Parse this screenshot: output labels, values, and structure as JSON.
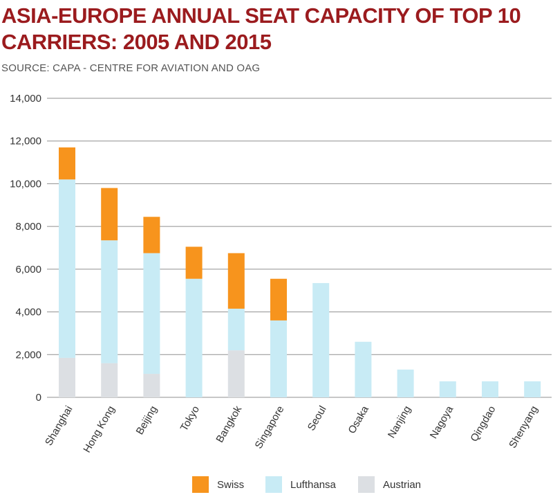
{
  "header": {
    "title": "ASIA-EUROPE ANNUAL SEAT CAPACITY OF TOP 10 CARRIERS: 2005 AND 2015",
    "source": "SOURCE: CAPA - CENTRE FOR AVIATION AND OAG"
  },
  "colors": {
    "swiss": "#f7941d",
    "lufthansa": "#c8ebf5",
    "austrian": "#dcdfe3",
    "grid": "#8f8f8f",
    "title": "#9b1b1e"
  },
  "chart_data": {
    "type": "bar",
    "stacked": true,
    "title": "ASIA-EUROPE ANNUAL SEAT CAPACITY OF TOP 10 CARRIERS: 2005 AND 2015",
    "xlabel": "",
    "ylabel": "",
    "ylim": [
      0,
      14000
    ],
    "yticks": [
      0,
      2000,
      4000,
      6000,
      8000,
      10000,
      12000,
      14000
    ],
    "ytick_labels": [
      "0",
      "2,000",
      "4,000",
      "6,000",
      "8,000",
      "10,000",
      "12,000",
      "14,000"
    ],
    "grid": true,
    "legend_position": "bottom",
    "categories": [
      "Shanghai",
      "Hong Kong",
      "Beijing",
      "Tokyo",
      "Bangkok",
      "Singapore",
      "Seoul",
      "Osaka",
      "Nanjing",
      "Nagoya",
      "Qingdao",
      "Shenyang"
    ],
    "series": [
      {
        "name": "Austrian",
        "color": "#dcdfe3",
        "values": [
          1850,
          1600,
          1100,
          0,
          2200,
          0,
          0,
          0,
          0,
          0,
          0,
          0
        ]
      },
      {
        "name": "Lufthansa",
        "color": "#c8ebf5",
        "values": [
          8350,
          5750,
          5650,
          5550,
          1950,
          3600,
          5350,
          2600,
          1300,
          750,
          750,
          750
        ]
      },
      {
        "name": "Swiss",
        "color": "#f7941d",
        "values": [
          1500,
          2450,
          1700,
          1500,
          2600,
          1950,
          0,
          0,
          0,
          0,
          0,
          0
        ]
      }
    ],
    "legend": [
      "Swiss",
      "Lufthansa",
      "Austrian"
    ]
  }
}
